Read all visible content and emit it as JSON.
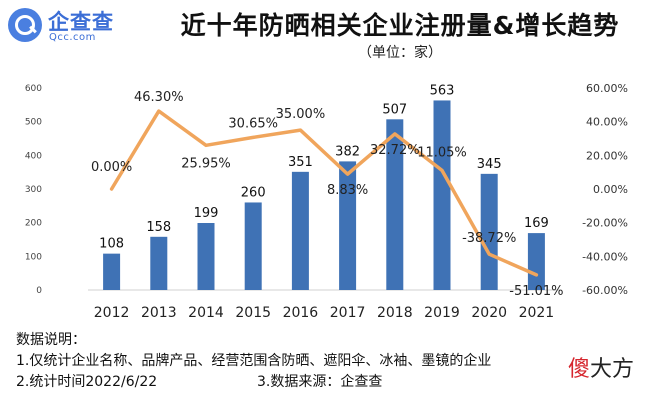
{
  "brand": {
    "name_cn": "企查查",
    "name_en": "Qcc.com",
    "brand_color": "#3b6ed6"
  },
  "watermark": {
    "first": "傻",
    "rest": "大方",
    "accent": "#d6262e"
  },
  "notes": {
    "heading": "数据说明：",
    "line1": "1.仅统计企业名称、品牌产品、经营范围含防晒、遮阳伞、冰袖、墨镜的企业",
    "line2": "2.统计时间2022/6/22",
    "line3": "3.数据来源：企查查"
  },
  "chart_data": {
    "type": "bar",
    "title": "近十年防晒相关企业注册量&增长趋势",
    "subtitle": "（单位：家）",
    "categories": [
      "2012",
      "2013",
      "2014",
      "2015",
      "2016",
      "2017",
      "2018",
      "2019",
      "2020",
      "2021"
    ],
    "series": [
      {
        "type": "bar",
        "axis": "left",
        "color": "#3f72b5",
        "values": [
          108,
          158,
          199,
          260,
          351,
          382,
          507,
          563,
          345,
          169
        ],
        "labels": [
          "108",
          "158",
          "199",
          "260",
          "351",
          "382",
          "507",
          "563",
          "345",
          "169"
        ]
      },
      {
        "type": "line",
        "axis": "right",
        "color": "#f0a55c",
        "values": [
          0.0,
          46.3,
          25.95,
          30.65,
          35.0,
          8.83,
          32.72,
          11.05,
          -38.72,
          -51.01
        ],
        "labels": [
          "0.00%",
          "46.30%",
          "25.95%",
          "30.65%",
          "35.00%",
          "8.83%",
          "32.72%",
          "11.05%",
          "-38.72%",
          "-51.01%"
        ]
      }
    ],
    "y_left": {
      "min": 0,
      "max": 600,
      "ticks": [
        "0",
        "100",
        "200",
        "300",
        "400",
        "500",
        "600"
      ]
    },
    "y_right": {
      "min": -60,
      "max": 60,
      "ticks": [
        "-60.00%",
        "-40.00%",
        "-20.00%",
        "0.00%",
        "20.00%",
        "40.00%",
        "60.00%"
      ]
    },
    "grid": false,
    "legend": "none"
  }
}
